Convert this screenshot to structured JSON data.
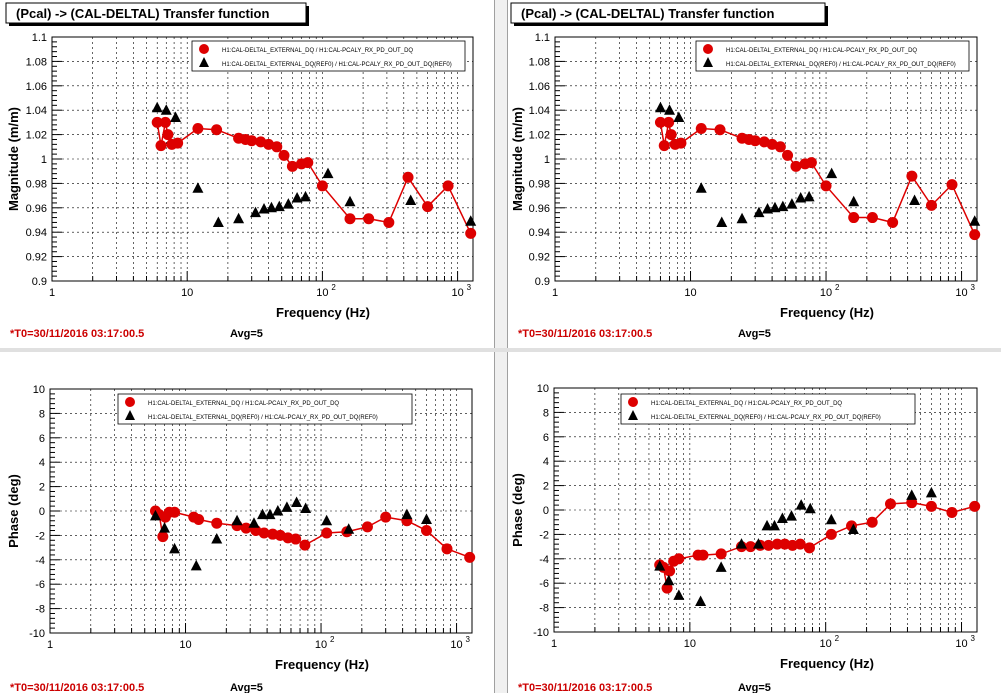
{
  "colors": {
    "series_main": "#dd0000",
    "series_ref": "#000000",
    "timestamp": "#cc0000",
    "title_box_border": "#000000",
    "grid": "#000000",
    "separator": "#a0a0a0"
  },
  "chart_data": [
    {
      "type": "scatter",
      "title": "(Pcal) -> (CAL-DELTAL) Transfer function",
      "xlabel": "Frequency (Hz)",
      "ylabel": "Magnitude (m/m)",
      "x_scale": "log",
      "xlim": [
        1,
        1300
      ],
      "ylim": [
        0.9,
        1.1
      ],
      "x_tick_labels": [
        "1",
        "10",
        "10",
        "10"
      ],
      "x_tick_exponents": [
        "",
        "",
        "2",
        "3"
      ],
      "y_tick_labels": [
        "0.9",
        "0.92",
        "0.94",
        "0.96",
        "0.98",
        "1",
        "1.02",
        "1.04",
        "1.06",
        "1.08",
        "1.1"
      ],
      "grid": true,
      "legend_placement": "top-right",
      "footer_left": "*T0=30/11/2016 03:17:00.5",
      "footer_right": "Avg=5",
      "series": [
        {
          "name": "H1:CAL-DELTAL_EXTERNAL_DQ / H1:CAL-PCALY_RX_PD_OUT_DQ",
          "marker": "circle",
          "connected": true,
          "x": [
            6,
            6.4,
            6.9,
            7.2,
            7.7,
            8.5,
            12,
            16.5,
            24,
            27,
            30,
            35,
            40,
            46,
            52,
            60,
            70,
            78,
            100,
            160,
            220,
            310,
            430,
            600,
            850,
            1250
          ],
          "y": [
            1.03,
            1.011,
            1.03,
            1.02,
            1.012,
            1.013,
            1.025,
            1.024,
            1.017,
            1.016,
            1.015,
            1.014,
            1.012,
            1.01,
            1.003,
            0.994,
            0.996,
            0.997,
            0.978,
            0.951,
            0.951,
            0.948,
            0.985,
            0.961,
            0.978,
            0.939
          ]
        },
        {
          "name": "H1:CAL-DELTAL_EXTERNAL_DQ(REF0) / H1:CAL-PCALY_RX_PD_OUT_DQ(REF0)",
          "marker": "triangle",
          "connected": false,
          "x": [
            6,
            7,
            8.2,
            12,
            17,
            24,
            32,
            37,
            42,
            48,
            56,
            65,
            75,
            110,
            160,
            450,
            1250
          ],
          "y": [
            1.042,
            1.04,
            1.034,
            0.976,
            0.948,
            0.951,
            0.956,
            0.959,
            0.96,
            0.961,
            0.963,
            0.968,
            0.969,
            0.988,
            0.965,
            0.966,
            0.949
          ]
        }
      ]
    },
    {
      "type": "scatter",
      "title": "(Pcal) -> (CAL-DELTAL) Transfer function",
      "xlabel": "Frequency (Hz)",
      "ylabel": "Magnitude (m/m)",
      "x_scale": "log",
      "xlim": [
        1,
        1300
      ],
      "ylim": [
        0.9,
        1.1
      ],
      "x_tick_labels": [
        "1",
        "10",
        "10",
        "10"
      ],
      "x_tick_exponents": [
        "",
        "",
        "2",
        "3"
      ],
      "y_tick_labels": [
        "0.9",
        "0.92",
        "0.94",
        "0.96",
        "0.98",
        "1",
        "1.02",
        "1.04",
        "1.06",
        "1.08",
        "1.1"
      ],
      "grid": true,
      "legend_placement": "top-right",
      "footer_left": "*T0=30/11/2016 03:17:00.5",
      "footer_right": "Avg=5",
      "series": [
        {
          "name": "H1:CAL-DELTAL_EXTERNAL_DQ / H1:CAL-PCALY_RX_PD_OUT_DQ",
          "marker": "circle",
          "connected": true,
          "x": [
            6,
            6.4,
            6.9,
            7.2,
            7.7,
            8.5,
            12,
            16.5,
            24,
            27,
            30,
            35,
            40,
            46,
            52,
            60,
            70,
            78,
            100,
            160,
            220,
            310,
            430,
            600,
            850,
            1250
          ],
          "y": [
            1.03,
            1.011,
            1.03,
            1.02,
            1.012,
            1.013,
            1.025,
            1.024,
            1.017,
            1.016,
            1.015,
            1.014,
            1.012,
            1.01,
            1.003,
            0.994,
            0.996,
            0.997,
            0.978,
            0.952,
            0.952,
            0.948,
            0.986,
            0.962,
            0.979,
            0.938
          ]
        },
        {
          "name": "H1:CAL-DELTAL_EXTERNAL_DQ(REF0) / H1:CAL-PCALY_RX_PD_OUT_DQ(REF0)",
          "marker": "triangle",
          "connected": false,
          "x": [
            6,
            7,
            8.2,
            12,
            17,
            24,
            32,
            37,
            42,
            48,
            56,
            65,
            75,
            110,
            160,
            450,
            1250
          ],
          "y": [
            1.042,
            1.04,
            1.034,
            0.976,
            0.948,
            0.951,
            0.956,
            0.959,
            0.96,
            0.961,
            0.963,
            0.968,
            0.969,
            0.988,
            0.965,
            0.966,
            0.949
          ]
        }
      ]
    },
    {
      "type": "scatter",
      "title": "",
      "xlabel": "Frequency (Hz)",
      "ylabel": "Phase (deg)",
      "x_scale": "log",
      "xlim": [
        1,
        1300
      ],
      "ylim": [
        -10,
        10
      ],
      "x_tick_labels": [
        "1",
        "10",
        "10",
        "10"
      ],
      "x_tick_exponents": [
        "",
        "",
        "2",
        "3"
      ],
      "y_tick_labels": [
        "-10",
        "-8",
        "-6",
        "-4",
        "-2",
        "0",
        "2",
        "4",
        "6",
        "8",
        "10"
      ],
      "grid": true,
      "legend_placement": "top-right",
      "footer_left": "*T0=30/11/2016 03:17:00.5",
      "footer_right": "Avg=5",
      "series": [
        {
          "name": "H1:CAL-DELTAL_EXTERNAL_DQ / H1:CAL-PCALY_RX_PD_OUT_DQ",
          "marker": "circle",
          "connected": true,
          "x": [
            6,
            6.4,
            6.8,
            7.1,
            7.6,
            8.3,
            11.5,
            12.5,
            17,
            24,
            28,
            33,
            38,
            44,
            50,
            57,
            65,
            76,
            110,
            155,
            220,
            300,
            430,
            600,
            850,
            1250
          ],
          "y": [
            0,
            -0.3,
            -2.1,
            -0.5,
            -0.1,
            -0.1,
            -0.5,
            -0.7,
            -1,
            -1.2,
            -1.4,
            -1.6,
            -1.8,
            -1.9,
            -2,
            -2.2,
            -2.3,
            -2.8,
            -1.8,
            -1.7,
            -1.3,
            -0.5,
            -0.8,
            -1.6,
            -3.1,
            -3.8
          ]
        },
        {
          "name": "H1:CAL-DELTAL_EXTERNAL_DQ(REF0) / H1:CAL-PCALY_RX_PD_OUT_DQ(REF0)",
          "marker": "triangle",
          "connected": false,
          "x": [
            6,
            7,
            8.3,
            12,
            17,
            24,
            32,
            37,
            42,
            48,
            56,
            66,
            77,
            110,
            160,
            430,
            600
          ],
          "y": [
            -0.4,
            -1.4,
            -3.1,
            -4.5,
            -2.3,
            -0.8,
            -1,
            -0.3,
            -0.3,
            0,
            0.3,
            0.7,
            0.2,
            -0.8,
            -1.5,
            -0.3,
            -0.7
          ]
        }
      ]
    },
    {
      "type": "scatter",
      "title": "",
      "xlabel": "Frequency (Hz)",
      "ylabel": "Phase (deg)",
      "x_scale": "log",
      "xlim": [
        1,
        1300
      ],
      "ylim": [
        -10,
        10
      ],
      "x_tick_labels": [
        "1",
        "10",
        "10",
        "10"
      ],
      "x_tick_exponents": [
        "",
        "",
        "2",
        "3"
      ],
      "y_tick_labels": [
        "-10",
        "-8",
        "-6",
        "-4",
        "-2",
        "0",
        "2",
        "4",
        "6",
        "8",
        "10"
      ],
      "grid": true,
      "legend_placement": "top-right",
      "footer_left": "*T0=30/11/2016 03:17:00.5",
      "footer_right": "Avg=5",
      "series": [
        {
          "name": "H1:CAL-DELTAL_EXTERNAL_DQ / H1:CAL-PCALY_RX_PD_OUT_DQ",
          "marker": "circle",
          "connected": true,
          "x": [
            6,
            6.4,
            6.8,
            7.1,
            7.6,
            8.3,
            11.5,
            12.5,
            17,
            24,
            28,
            33,
            38,
            44,
            50,
            57,
            65,
            76,
            110,
            155,
            220,
            300,
            430,
            600,
            850,
            1250
          ],
          "y": [
            -4.5,
            -4.7,
            -6.4,
            -5,
            -4.2,
            -4,
            -3.7,
            -3.7,
            -3.6,
            -3,
            -3,
            -2.9,
            -2.9,
            -2.8,
            -2.8,
            -2.9,
            -2.8,
            -3.1,
            -2,
            -1.3,
            -1,
            0.5,
            0.6,
            0.3,
            -0.2,
            0.3
          ]
        },
        {
          "name": "H1:CAL-DELTAL_EXTERNAL_DQ(REF0) / H1:CAL-PCALY_RX_PD_OUT_DQ(REF0)",
          "marker": "triangle",
          "connected": false,
          "x": [
            6,
            7,
            8.3,
            12,
            17,
            24,
            32,
            37,
            42,
            48,
            56,
            66,
            77,
            110,
            160,
            430,
            600
          ],
          "y": [
            -4.6,
            -5.8,
            -7,
            -7.5,
            -4.7,
            -2.8,
            -2.8,
            -1.3,
            -1.3,
            -0.7,
            -0.5,
            0.4,
            0.1,
            -0.8,
            -1.6,
            1.2,
            1.4
          ]
        }
      ]
    }
  ]
}
